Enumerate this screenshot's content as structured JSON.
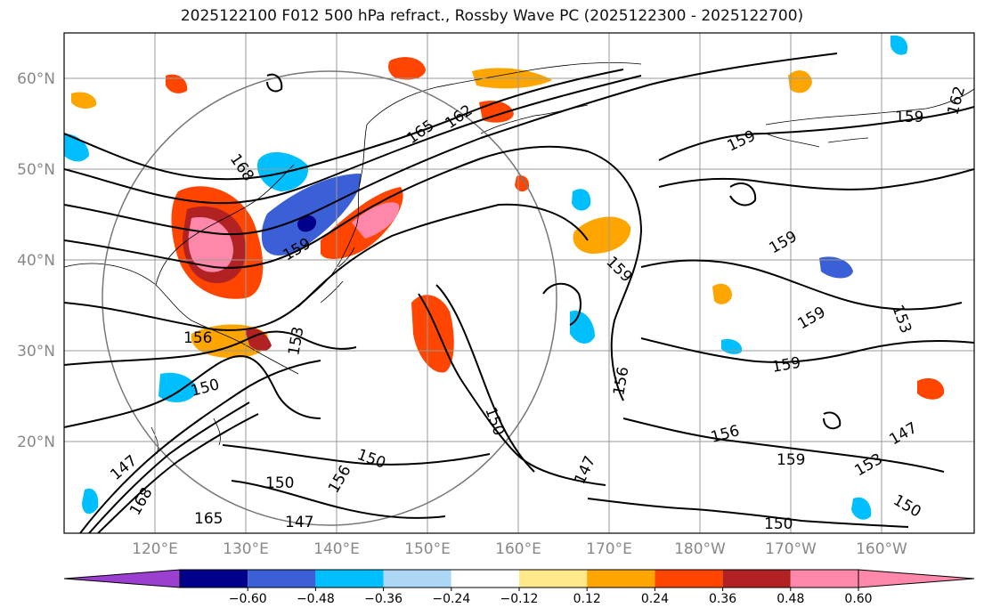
{
  "title": "2025122100 F012 500 hPa refract., Rossby Wave PC (2025122300 - 2025122700)",
  "lat_labels": [
    "60°N",
    "50°N",
    "40°N",
    "30°N",
    "20°N"
  ],
  "lon_labels": [
    "120°E",
    "130°E",
    "140°E",
    "150°E",
    "160°E",
    "170°E",
    "180°W",
    "170°W",
    "160°W"
  ],
  "contour_labels": [
    "168",
    "165",
    "162",
    "159",
    "156",
    "153",
    "150",
    "147",
    "159",
    "159",
    "159",
    "159",
    "153",
    "159",
    "156",
    "156",
    "159",
    "153",
    "150",
    "150",
    "150",
    "156",
    "147",
    "150",
    "159",
    "162",
    "168",
    "165",
    "147",
    "150",
    "147"
  ],
  "colorbar": {
    "tick_labels": [
      "−0.60",
      "−0.48",
      "−0.36",
      "−0.24",
      "−0.12",
      "0.12",
      "0.24",
      "0.36",
      "0.48",
      "0.60"
    ],
    "colors": [
      "#9a3fd0",
      "#00008b",
      "#3b5fd6",
      "#00bfff",
      "#add8f5",
      "#ffffff",
      "#ffe98a",
      "#ffa500",
      "#ff4500",
      "#b22222",
      "#ff88aa",
      "#ff88aa"
    ]
  }
}
